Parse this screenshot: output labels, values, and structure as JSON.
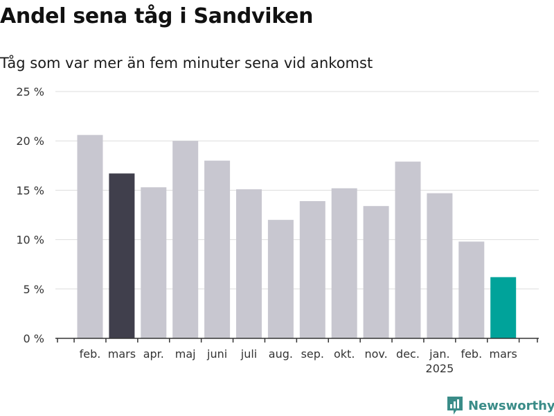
{
  "title": "Andel sena tåg i Sandviken",
  "subtitle": "Tåg som var mer än fem minuter sena vid ankomst",
  "brand": {
    "name": "Newsworthy"
  },
  "colors": {
    "default_bar": "#c8c7d0",
    "highlight_prev_year": "#403f4c",
    "highlight_latest": "#00a39a",
    "grid": "#dddddd",
    "axis": "#333333",
    "brand": "#3a8c88"
  },
  "chart_data": {
    "type": "bar",
    "title": "Andel sena tåg i Sandviken",
    "subtitle": "Tåg som var mer än fem minuter sena vid ankomst",
    "categories": [
      "feb.",
      "mars",
      "apr.",
      "maj",
      "juni",
      "juli",
      "aug.",
      "sep.",
      "okt.",
      "nov.",
      "dec.",
      "jan.",
      "feb.",
      "mars"
    ],
    "category_sublabels": [
      "",
      "",
      "",
      "",
      "",
      "",
      "",
      "",
      "",
      "",
      "",
      "2025",
      "",
      ""
    ],
    "values": [
      20.6,
      16.7,
      15.3,
      20.0,
      18.0,
      15.1,
      12.0,
      13.9,
      15.2,
      13.4,
      17.9,
      14.7,
      9.8,
      6.2
    ],
    "highlight": [
      "default",
      "prev",
      "default",
      "default",
      "default",
      "default",
      "default",
      "default",
      "default",
      "default",
      "default",
      "default",
      "default",
      "latest"
    ],
    "ylim": [
      0,
      25
    ],
    "yticks": [
      0,
      5,
      10,
      15,
      20,
      25
    ],
    "ytick_labels": [
      "0 %",
      "5 %",
      "10 %",
      "15 %",
      "20 %",
      "25 %"
    ],
    "xlabel": "",
    "ylabel": "",
    "grid": true
  }
}
